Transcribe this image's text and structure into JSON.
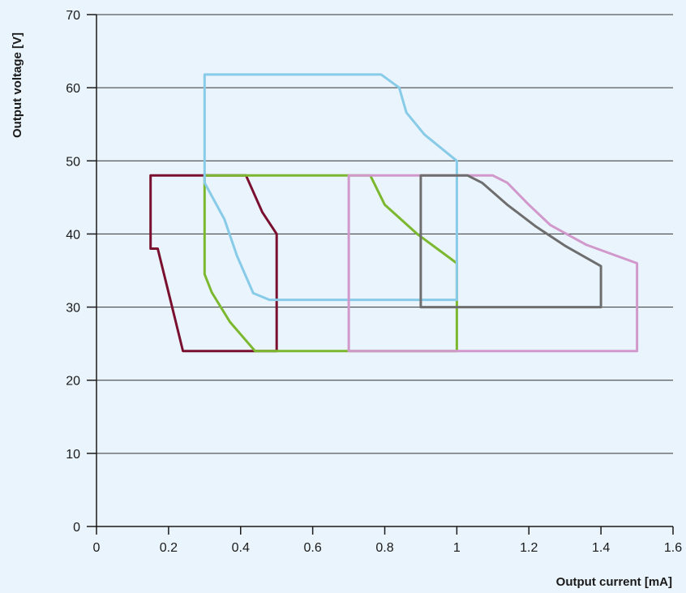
{
  "chart_data": {
    "type": "line",
    "title": "",
    "xlabel": "Output current [mA]",
    "ylabel": "Output voltage [V]",
    "xlim": [
      0,
      1.6
    ],
    "ylim": [
      0,
      70
    ],
    "x_ticks": [
      0,
      0.2,
      0.4,
      0.6,
      0.8,
      1,
      1.2,
      1.4,
      1.6
    ],
    "x_tick_labels": [
      "0",
      "0.2",
      "0.4",
      "0.6",
      "0.8",
      "1",
      "1.2",
      "1.4",
      "1.6"
    ],
    "y_ticks": [
      0,
      10,
      20,
      30,
      40,
      50,
      60,
      70
    ],
    "y_tick_labels": [
      "0",
      "10",
      "20",
      "30",
      "40",
      "50",
      "60",
      "70"
    ],
    "grid": "horizontal",
    "legend": "none",
    "series": [
      {
        "color": "#7a1030",
        "points": [
          [
            0.15,
            48
          ],
          [
            0.415,
            48
          ],
          [
            0.46,
            43
          ],
          [
            0.5,
            40
          ],
          [
            0.5,
            24
          ],
          [
            0.24,
            24
          ],
          [
            0.205,
            31
          ],
          [
            0.17,
            38
          ],
          [
            0.15,
            38
          ],
          [
            0.15,
            48
          ]
        ]
      },
      {
        "color": "#7cb82f",
        "points": [
          [
            0.3,
            48
          ],
          [
            0.76,
            48
          ],
          [
            0.8,
            44
          ],
          [
            0.89,
            40
          ],
          [
            1.0,
            36
          ],
          [
            1.0,
            24
          ],
          [
            0.44,
            24
          ],
          [
            0.37,
            28
          ],
          [
            0.32,
            32
          ],
          [
            0.3,
            34.5
          ],
          [
            0.3,
            48
          ]
        ]
      },
      {
        "color": "#87cbe8",
        "points": [
          [
            0.3,
            61.8
          ],
          [
            0.79,
            61.8
          ],
          [
            0.84,
            60
          ],
          [
            0.86,
            56.6
          ],
          [
            0.91,
            53.6
          ],
          [
            1.0,
            50
          ],
          [
            1.0,
            31
          ],
          [
            0.48,
            31
          ],
          [
            0.435,
            31.9
          ],
          [
            0.39,
            37
          ],
          [
            0.355,
            42
          ],
          [
            0.3,
            47
          ],
          [
            0.3,
            61.8
          ]
        ]
      },
      {
        "color": "#d198cc",
        "points": [
          [
            0.7,
            48
          ],
          [
            1.1,
            48
          ],
          [
            1.14,
            47
          ],
          [
            1.2,
            44
          ],
          [
            1.26,
            41.2
          ],
          [
            1.36,
            38.5
          ],
          [
            1.5,
            36
          ],
          [
            1.5,
            24
          ],
          [
            0.7,
            24
          ],
          [
            0.7,
            48
          ]
        ]
      },
      {
        "color": "#6e6e6e",
        "points": [
          [
            0.9,
            48
          ],
          [
            1.03,
            48
          ],
          [
            1.07,
            47
          ],
          [
            1.14,
            44
          ],
          [
            1.22,
            41
          ],
          [
            1.3,
            38.4
          ],
          [
            1.4,
            35.6
          ],
          [
            1.4,
            30
          ],
          [
            0.9,
            30
          ],
          [
            0.9,
            48
          ]
        ]
      }
    ]
  }
}
